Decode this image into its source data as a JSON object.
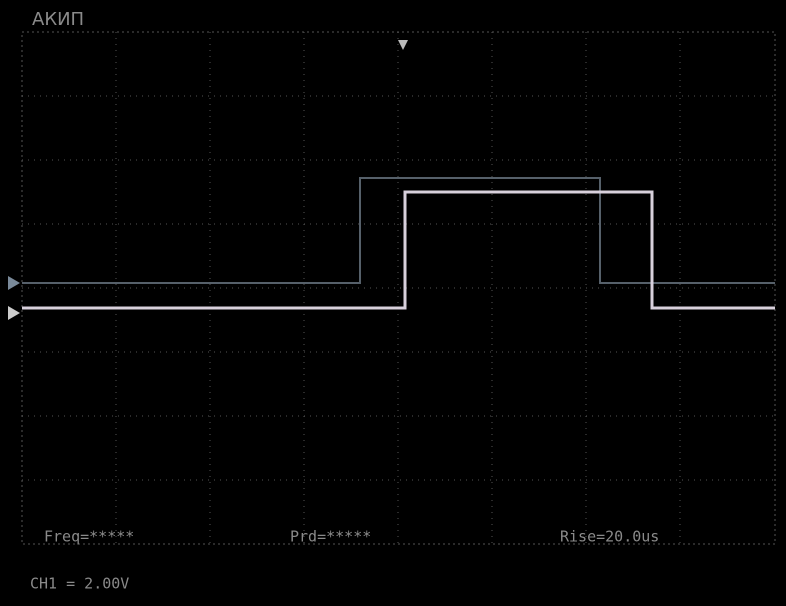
{
  "header": {
    "brand": "АКИП"
  },
  "measurements": {
    "freq": "Freq=*****",
    "period": "Prd=*****",
    "rise": "Rise=20.0us"
  },
  "status": {
    "channel": "CH1 = 2.00V"
  }
}
